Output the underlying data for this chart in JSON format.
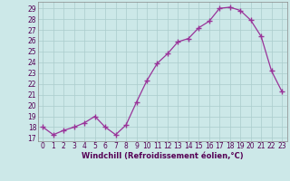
{
  "x": [
    0,
    1,
    2,
    3,
    4,
    5,
    6,
    7,
    8,
    9,
    10,
    11,
    12,
    13,
    14,
    15,
    16,
    17,
    18,
    19,
    20,
    21,
    22,
    23
  ],
  "y": [
    18.0,
    17.3,
    17.7,
    18.0,
    18.4,
    19.0,
    18.0,
    17.3,
    18.2,
    20.3,
    22.3,
    23.9,
    24.8,
    25.9,
    26.2,
    27.2,
    27.8,
    29.0,
    29.1,
    28.8,
    27.9,
    26.4,
    23.2,
    21.3
  ],
  "line_color": "#993399",
  "marker": "+",
  "marker_size": 4,
  "bg_color": "#cce8e8",
  "grid_color": "#aacccc",
  "xlabel": "Windchill (Refroidissement éolien,°C)",
  "ylabel_ticks": [
    17,
    18,
    19,
    20,
    21,
    22,
    23,
    24,
    25,
    26,
    27,
    28,
    29
  ],
  "xlim": [
    -0.5,
    23.5
  ],
  "ylim": [
    16.7,
    29.6
  ],
  "tick_fontsize": 5.5,
  "xlabel_fontsize": 6.0
}
